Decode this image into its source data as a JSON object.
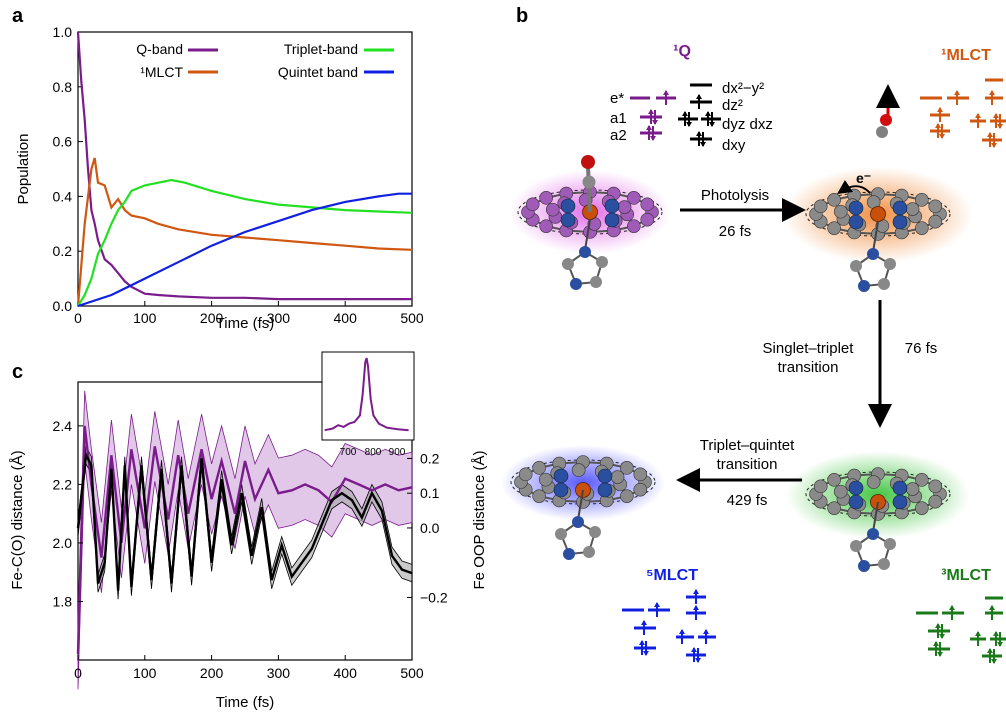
{
  "panels": {
    "a": "a",
    "b": "b",
    "c": "c"
  },
  "colors": {
    "qband": "#7b1c8c",
    "mlct1": "#d0570f",
    "triplet": "#22e022",
    "quintet": "#1020e0",
    "q_glow": "#e060e8",
    "mlct_glow": "#f08a3a",
    "triplet_glow": "#30c030",
    "quintet_glow": "#5050ff",
    "triplet_text": "#1a7a1a",
    "quintet_text": "#1020e0",
    "mlct_text": "#d0570f",
    "qtext": "#7b1c8c",
    "band": "#c99ad6",
    "grey_band": "#a0a0a0"
  },
  "chart_data": [
    {
      "type": "line",
      "panel": "a",
      "xlabel": "Time (fs)",
      "ylabel": "Population",
      "xlim": [
        0,
        500
      ],
      "ylim": [
        0,
        1.0
      ],
      "xticks": [
        "0",
        "100",
        "200",
        "300",
        "400",
        "500"
      ],
      "yticks": [
        "0.0",
        "0.2",
        "0.4",
        "0.6",
        "0.8",
        "1.0"
      ],
      "legend": [
        "Q-band",
        "¹MLCT",
        "Triplet-band",
        "Quintet band"
      ],
      "series": [
        {
          "name": "Q-band",
          "x": [
            0,
            5,
            10,
            15,
            20,
            25,
            30,
            40,
            50,
            60,
            70,
            80,
            100,
            120,
            150,
            200,
            250,
            300,
            350,
            400,
            450,
            500
          ],
          "y": [
            1.0,
            0.82,
            0.68,
            0.5,
            0.35,
            0.3,
            0.24,
            0.17,
            0.15,
            0.12,
            0.09,
            0.07,
            0.045,
            0.04,
            0.035,
            0.03,
            0.03,
            0.025,
            0.025,
            0.025,
            0.025,
            0.025
          ]
        },
        {
          "name": "¹MLCT",
          "x": [
            0,
            10,
            20,
            25,
            30,
            40,
            50,
            60,
            70,
            80,
            100,
            120,
            150,
            200,
            250,
            300,
            350,
            400,
            450,
            500
          ],
          "y": [
            0.0,
            0.3,
            0.5,
            0.54,
            0.45,
            0.44,
            0.36,
            0.39,
            0.35,
            0.33,
            0.32,
            0.3,
            0.28,
            0.26,
            0.25,
            0.24,
            0.23,
            0.22,
            0.21,
            0.205
          ]
        },
        {
          "name": "Triplet-band",
          "x": [
            0,
            10,
            20,
            30,
            40,
            50,
            60,
            70,
            80,
            100,
            120,
            140,
            160,
            200,
            250,
            300,
            350,
            400,
            450,
            500
          ],
          "y": [
            0.0,
            0.04,
            0.1,
            0.19,
            0.24,
            0.3,
            0.35,
            0.38,
            0.42,
            0.44,
            0.45,
            0.46,
            0.45,
            0.42,
            0.39,
            0.37,
            0.36,
            0.35,
            0.345,
            0.34
          ]
        },
        {
          "name": "Quintet band",
          "x": [
            0,
            50,
            100,
            150,
            200,
            250,
            300,
            350,
            400,
            450,
            480,
            500
          ],
          "y": [
            0.0,
            0.04,
            0.1,
            0.16,
            0.22,
            0.27,
            0.31,
            0.35,
            0.38,
            0.4,
            0.41,
            0.41
          ]
        }
      ]
    },
    {
      "type": "line",
      "panel": "c",
      "xlabel": "Time (fs)",
      "ylabel": "Fe-C(O) distance (Å)",
      "y2label": "Fe OOP distance (Å)",
      "xlim": [
        0,
        500
      ],
      "ylim": [
        1.6,
        2.55
      ],
      "y2lim": [
        -0.38,
        0.42
      ],
      "xticks": [
        "0",
        "100",
        "200",
        "300",
        "400",
        "500"
      ],
      "yticks": [
        "1.8",
        "2.0",
        "2.2",
        "2.4"
      ],
      "y2ticks": [
        "−0.2",
        "0.0",
        "0.1",
        "0.2"
      ],
      "series": [
        {
          "name": "Fe-C(O)",
          "x": [
            0,
            10,
            20,
            35,
            50,
            65,
            80,
            100,
            115,
            135,
            150,
            165,
            185,
            200,
            215,
            235,
            250,
            265,
            285,
            300,
            320,
            340,
            360,
            380,
            400,
            420,
            440,
            460,
            480,
            500
          ],
          "y": [
            1.62,
            2.4,
            2.2,
            1.95,
            2.3,
            2.0,
            2.32,
            2.05,
            2.33,
            2.08,
            2.3,
            2.1,
            2.32,
            2.15,
            2.28,
            2.1,
            2.28,
            2.15,
            2.25,
            2.17,
            2.18,
            2.2,
            2.18,
            2.14,
            2.22,
            2.2,
            2.18,
            2.2,
            2.18,
            2.19
          ],
          "band": 0.12
        },
        {
          "name": "Fe OOP",
          "x": [
            0,
            12,
            20,
            30,
            40,
            50,
            60,
            70,
            80,
            95,
            110,
            125,
            140,
            155,
            170,
            185,
            200,
            215,
            230,
            245,
            260,
            275,
            290,
            305,
            320,
            335,
            350,
            365,
            380,
            395,
            410,
            425,
            440,
            455,
            470,
            485,
            500
          ],
          "y": [
            0.0,
            0.21,
            0.18,
            -0.16,
            -0.1,
            0.17,
            -0.18,
            0.18,
            -0.17,
            0.18,
            -0.15,
            0.17,
            -0.16,
            0.18,
            -0.14,
            0.2,
            -0.1,
            0.14,
            -0.05,
            0.1,
            -0.08,
            0.06,
            -0.15,
            -0.05,
            -0.14,
            -0.1,
            -0.06,
            0.01,
            0.08,
            0.1,
            0.08,
            0.03,
            0.1,
            0.05,
            -0.08,
            -0.12,
            -0.13
          ],
          "band": 0.025
        }
      ],
      "inset": {
        "xticks": [
          "700",
          "800",
          "900"
        ],
        "x": [
          650,
          680,
          700,
          720,
          740,
          760,
          780,
          790,
          800,
          805,
          810,
          820,
          830,
          850,
          880,
          920,
          960
        ],
        "y": [
          0.12,
          0.14,
          0.18,
          0.16,
          0.2,
          0.22,
          0.3,
          0.55,
          0.95,
          1.0,
          0.9,
          0.5,
          0.3,
          0.2,
          0.15,
          0.13,
          0.12
        ]
      }
    }
  ],
  "scheme": {
    "q_label": "¹Q",
    "mlct1_label": "¹MLCT",
    "mlct3_label": "³MLCT",
    "mlct5_label": "⁵MLCT",
    "orbitals": {
      "estar": "e*",
      "a1": "a1",
      "a2": "a2",
      "dx2y2": "dx²−y²",
      "dz2": "dz²",
      "dyzdxz": "dyz dxz",
      "dxy": "dxy"
    },
    "electron": "e⁻",
    "arrows": [
      {
        "label": "Photolysis",
        "time": "26 fs"
      },
      {
        "label": "Singlet–triplet transition",
        "line1": "Singlet–triplet",
        "line2": "transition",
        "time": "76 fs"
      },
      {
        "label": "Triplet–quintet transition",
        "line1": "Triplet–quintet",
        "line2": "transition",
        "time": "429 fs"
      }
    ]
  }
}
